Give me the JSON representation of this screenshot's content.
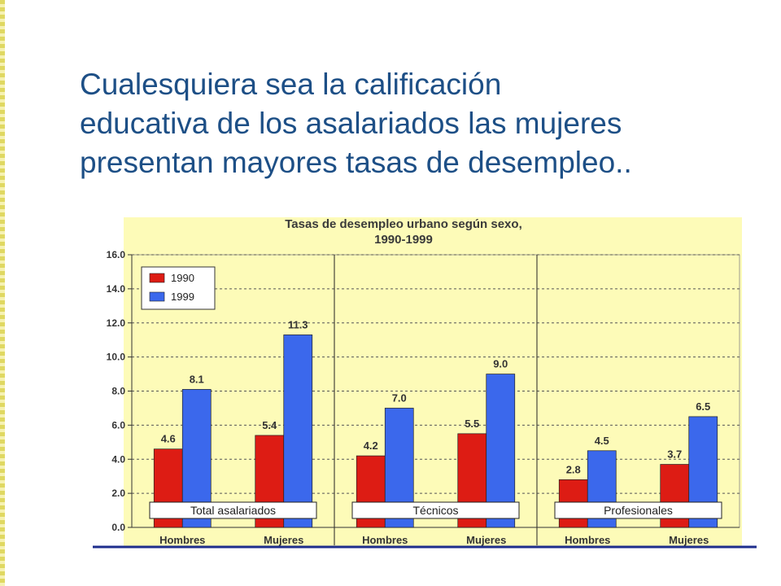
{
  "slide": {
    "heading": "Cualesquiera sea la calificación\neducativa de los asalariados las mujeres\npresentan mayores tasas de desempleo.."
  },
  "colors": {
    "series_1990": "#dd1c14",
    "series_1999": "#3b68ec",
    "plot_bg": "#fdfbb8",
    "grid": "#555555",
    "bottom_rule": "#1e2e8c"
  },
  "chart_data": {
    "type": "bar",
    "title": "Tasas de desempleo urbano según sexo,",
    "subtitle": "1990-1999",
    "categories": [
      "Hombres",
      "Mujeres",
      "Hombres",
      "Mujeres",
      "Hombres",
      "Mujeres"
    ],
    "groups": [
      "Total asalariados",
      "Técnicos",
      "Profesionales"
    ],
    "series": [
      {
        "name": "1990",
        "values": [
          4.6,
          5.4,
          4.2,
          5.5,
          2.8,
          3.7
        ],
        "labels": [
          "4.6",
          "5.4",
          "4.2",
          "5.5",
          "2.8",
          "3.7"
        ]
      },
      {
        "name": "1999",
        "values": [
          8.1,
          11.3,
          7.0,
          9.0,
          4.5,
          6.5
        ],
        "labels": [
          "8.1",
          "11.3",
          "7.0",
          "9.0",
          "4.5",
          "6.5"
        ]
      }
    ],
    "ylim": [
      0,
      16
    ],
    "yticks": [
      "0.0",
      "2.0",
      "4.0",
      "6.0",
      "8.0",
      "10.0",
      "12.0",
      "14.0",
      "16.0"
    ],
    "legend_position": "top-left",
    "grid": true,
    "xlabel": "",
    "ylabel": ""
  }
}
